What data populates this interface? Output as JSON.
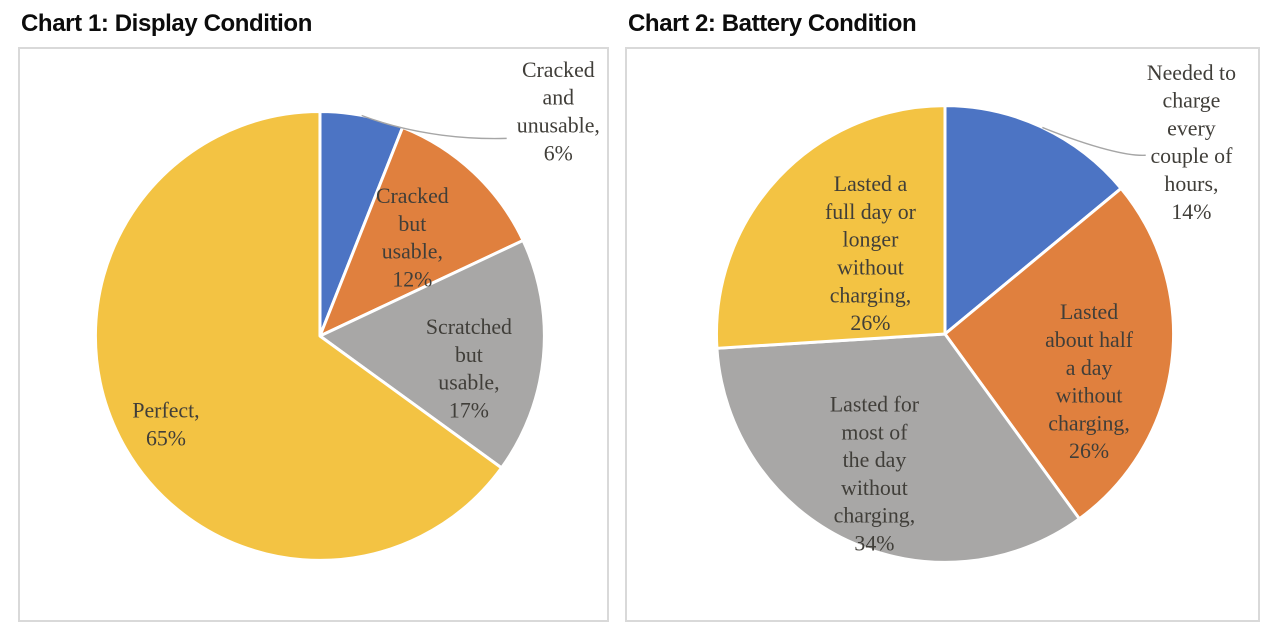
{
  "page": {
    "background_color": "#ffffff",
    "chart_count": 2,
    "title_color": "#0c0c0c",
    "label_text_color": "#403e39",
    "leader_line_color": "#a6a6a6",
    "box_border_color": "#d9d9d9"
  },
  "chart_data": [
    {
      "type": "pie",
      "title": "Chart 1: Display Condition",
      "unit": "percent",
      "direction": "clockwise",
      "start_angle_deg": 0,
      "legend": "none",
      "data_label_style": "category name, percent",
      "labels": [
        "Cracked and unusable",
        "Cracked but usable",
        "Scratched but usable",
        "Perfect"
      ],
      "values": [
        6,
        12,
        17,
        65
      ],
      "colors": [
        "#4c74c4",
        "#e0803e",
        "#a8a7a6",
        "#f3c343"
      ],
      "slice_label_text": [
        "Cracked and unusable, 6%",
        "Cracked but usable, 12%",
        "Scratched but usable, 17%",
        "Perfect, 65%"
      ],
      "slice_label_lines": [
        [
          "Cracked",
          "and",
          "unusable,",
          "6%"
        ],
        [
          "Cracked",
          "but",
          "usable,",
          "12%"
        ],
        [
          "Scratched",
          "but",
          "usable,",
          "17%"
        ],
        [
          "Perfect,",
          "65%"
        ]
      ],
      "label_placement": [
        "outside-with-leader-line",
        "inside",
        "inside",
        "inside"
      ]
    },
    {
      "type": "pie",
      "title": "Chart 2: Battery Condition",
      "unit": "percent",
      "direction": "clockwise",
      "start_angle_deg": 0,
      "legend": "none",
      "data_label_style": "category name, percent",
      "labels": [
        "Needed to charge every couple of hours",
        "Lasted about half a day without charging",
        "Lasted for most of the day without charging",
        "Lasted a full day or longer without charging"
      ],
      "values": [
        14,
        26,
        34,
        26
      ],
      "colors": [
        "#4c74c4",
        "#e0803e",
        "#a8a7a6",
        "#f3c343"
      ],
      "slice_label_text": [
        "Needed to charge every couple of hours, 14%",
        "Lasted about half a day without charging, 26%",
        "Lasted for most of the day without charging, 34%",
        "Lasted a full day or longer without charging, 26%"
      ],
      "slice_label_lines": [
        [
          "Needed to",
          "charge",
          "every",
          "couple of",
          "hours,",
          "14%"
        ],
        [
          "Lasted",
          "about half",
          "a day",
          "without",
          "charging,",
          "26%"
        ],
        [
          "Lasted for",
          "most of",
          "the day",
          "without",
          "charging,",
          "34%"
        ],
        [
          "Lasted a",
          "full day or",
          "longer",
          "without",
          "charging,",
          "26%"
        ]
      ],
      "label_placement": [
        "outside-with-leader-line",
        "inside",
        "inside",
        "inside"
      ]
    }
  ]
}
